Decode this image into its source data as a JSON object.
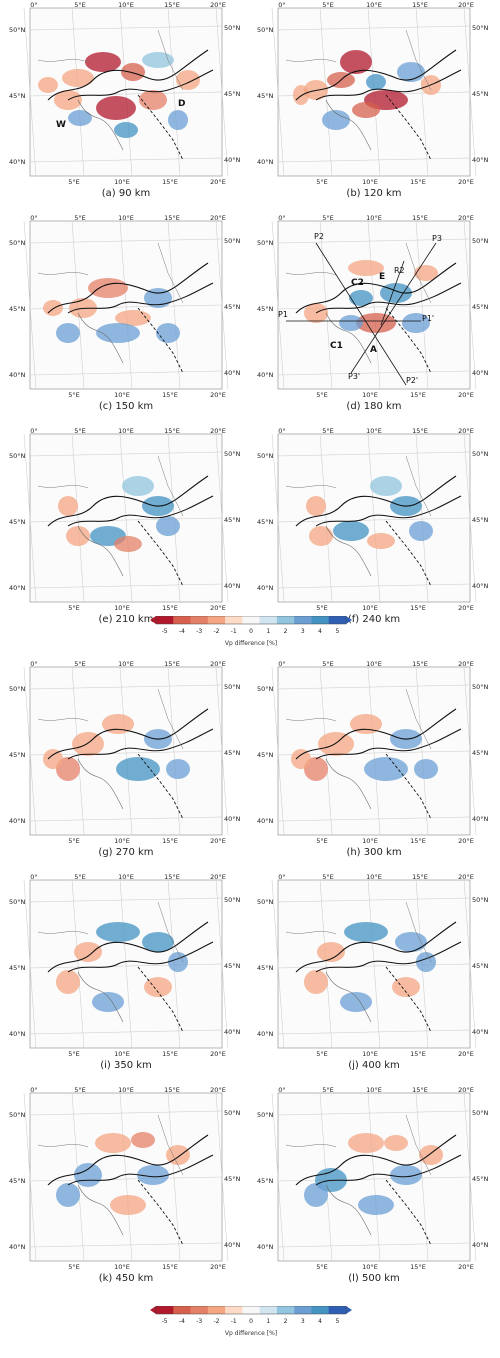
{
  "panels": [
    {
      "id": "a",
      "caption": "(a) 90 km"
    },
    {
      "id": "b",
      "caption": "(b) 120 km"
    },
    {
      "id": "c",
      "caption": "(c) 150 km"
    },
    {
      "id": "d",
      "caption": "(d) 180 km"
    },
    {
      "id": "e",
      "caption": "(e) 210 km"
    },
    {
      "id": "f",
      "caption": "(f) 240 km"
    },
    {
      "id": "g",
      "caption": "(g) 270 km"
    },
    {
      "id": "h",
      "caption": "(h) 300 km"
    },
    {
      "id": "i",
      "caption": "(i) 350 km"
    },
    {
      "id": "j",
      "caption": "(j) 400 km"
    },
    {
      "id": "k",
      "caption": "(k) 450 km"
    },
    {
      "id": "l",
      "caption": "(l) 500 km"
    }
  ],
  "axes": {
    "lon_top": [
      "0°",
      "5°E",
      "10°E",
      "15°E",
      "20°E"
    ],
    "lon_bottom": [
      "5°E",
      "10°E",
      "15°E",
      "20°E"
    ],
    "lat": [
      "50°N",
      "45°N",
      "40°N"
    ]
  },
  "annotations": {
    "a": [
      "W",
      "D"
    ],
    "d": [
      "P2",
      "P3",
      "R2",
      "E",
      "C2",
      "P1",
      "P1'",
      "C1",
      "A",
      "P3'",
      "P2'"
    ]
  },
  "colorbar": {
    "ticks": [
      "-5",
      "-4",
      "-3",
      "-2",
      "-1",
      "0",
      "1",
      "2",
      "3",
      "4",
      "5"
    ],
    "label": "Vp difference [%]",
    "colors": [
      "#b2182b",
      "#d6604d",
      "#e58068",
      "#f4a582",
      "#fddbc7",
      "#f7f7f7",
      "#d1e5f0",
      "#92c5de",
      "#6b9fd4",
      "#4393c3",
      "#2f5fb5"
    ]
  }
}
